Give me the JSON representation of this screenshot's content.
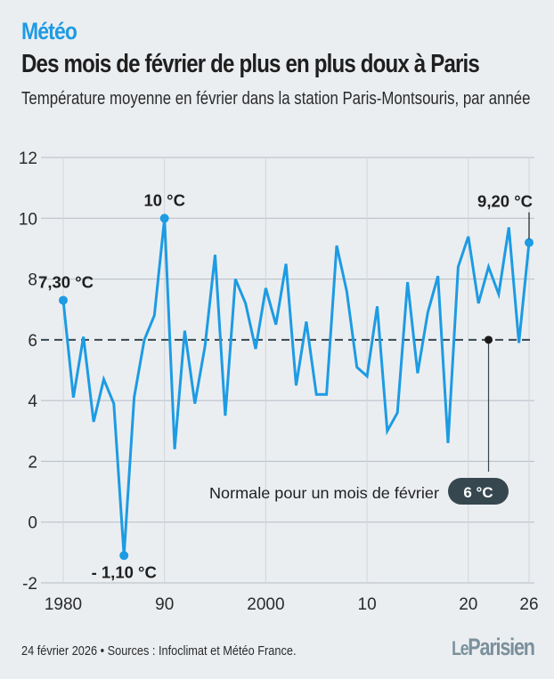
{
  "header": {
    "kicker": "Météo",
    "title": "Des mois de février de plus en plus doux à Paris",
    "subtitle": "Température moyenne en février dans la station Paris-Montsouris, par année"
  },
  "footer": {
    "source": "24 février 2026 • Sources : Infoclimat et Météo France.",
    "logo_le": "Le",
    "logo_parisien": "Parisien"
  },
  "colors": {
    "line": "#1d9be3",
    "accent": "#1d9be3",
    "badge": "#37474f",
    "reference": "#37474f",
    "grid": "#b4bcc2"
  },
  "chart_data": {
    "type": "line",
    "title": "Des mois de février de plus en plus doux à Paris",
    "subtitle": "Température moyenne en février dans la station Paris-Montsouris, par année",
    "xlabel": "",
    "ylabel": "",
    "x": [
      1980,
      1981,
      1982,
      1983,
      1984,
      1985,
      1986,
      1987,
      1988,
      1989,
      1990,
      1991,
      1992,
      1993,
      1994,
      1995,
      1996,
      1997,
      1998,
      1999,
      2000,
      2001,
      2002,
      2003,
      2004,
      2005,
      2006,
      2007,
      2008,
      2009,
      2010,
      2011,
      2012,
      2013,
      2014,
      2015,
      2016,
      2017,
      2018,
      2019,
      2020,
      2021,
      2022,
      2023,
      2024,
      2025,
      2026
    ],
    "series": [
      {
        "name": "Température moyenne en février (°C)",
        "values": [
          7.3,
          4.1,
          6.1,
          3.3,
          4.7,
          3.9,
          -1.1,
          4.1,
          6.0,
          6.8,
          10.0,
          2.4,
          6.3,
          3.9,
          5.8,
          8.8,
          3.5,
          8.0,
          7.2,
          5.7,
          7.7,
          6.5,
          8.5,
          4.5,
          6.6,
          4.2,
          4.2,
          9.1,
          7.6,
          5.1,
          4.8,
          7.1,
          3.0,
          3.6,
          7.9,
          4.9,
          6.9,
          8.1,
          2.6,
          8.4,
          9.4,
          7.2,
          8.4,
          7.5,
          9.7,
          5.9,
          9.2
        ]
      }
    ],
    "xlim": [
      1980,
      2026
    ],
    "ylim": [
      -2,
      12
    ],
    "x_ticks": [
      {
        "value": 1980,
        "label": "1980"
      },
      {
        "value": 1990,
        "label": "90"
      },
      {
        "value": 2000,
        "label": "2000"
      },
      {
        "value": 2010,
        "label": "10"
      },
      {
        "value": 2020,
        "label": "20"
      },
      {
        "value": 2026,
        "label": "26"
      }
    ],
    "y_ticks": [
      {
        "value": 12,
        "label": "12"
      },
      {
        "value": 10,
        "label": "10"
      },
      {
        "value": 8,
        "label": "8"
      },
      {
        "value": 6,
        "label": "6"
      },
      {
        "value": 4,
        "label": "4"
      },
      {
        "value": 2,
        "label": "2"
      },
      {
        "value": 0,
        "label": "0"
      },
      {
        "value": -2,
        "label": "-2"
      }
    ],
    "grid": true,
    "legend": "none",
    "annotations": [
      {
        "x": 1980,
        "y": 7.3,
        "label": "7,30 °C",
        "position": "above"
      },
      {
        "x": 1986,
        "y": -1.1,
        "label": "- 1,10 °C",
        "position": "below"
      },
      {
        "x": 1990,
        "y": 10.0,
        "label": "10 °C",
        "position": "above"
      },
      {
        "x": 2026,
        "y": 9.2,
        "label": "9,20 °C",
        "position": "above-leader"
      }
    ],
    "reference_line": {
      "y": 6,
      "style": "dashed",
      "label": "Normale pour un mois de février",
      "badge": "6 °C",
      "marker_x": 2022
    }
  }
}
